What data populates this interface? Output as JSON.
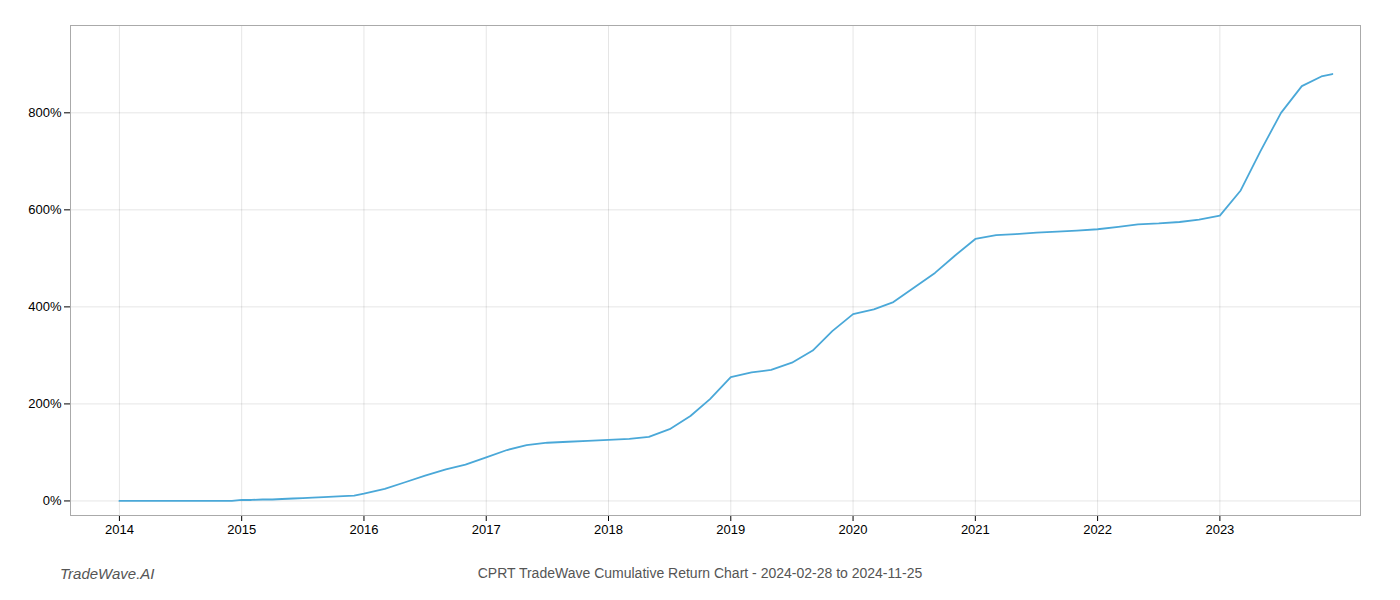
{
  "chart_data": {
    "type": "line",
    "title": "CPRT TradeWave Cumulative Return Chart - 2024-02-28 to 2024-11-25",
    "annotations": [
      {
        "text": "TradeWave.AI"
      }
    ],
    "x": [
      2014.0,
      2014.08,
      2014.17,
      2014.25,
      2014.33,
      2014.42,
      2014.5,
      2014.58,
      2014.67,
      2014.75,
      2014.83,
      2014.92,
      2015.0,
      2015.08,
      2015.17,
      2015.25,
      2015.33,
      2015.42,
      2015.5,
      2015.58,
      2015.67,
      2015.75,
      2015.83,
      2015.92,
      2016.0,
      2016.17,
      2016.33,
      2016.5,
      2016.67,
      2016.83,
      2017.0,
      2017.17,
      2017.33,
      2017.5,
      2017.67,
      2017.83,
      2018.0,
      2018.17,
      2018.33,
      2018.5,
      2018.67,
      2018.83,
      2019.0,
      2019.17,
      2019.33,
      2019.5,
      2019.67,
      2019.83,
      2020.0,
      2020.17,
      2020.33,
      2020.5,
      2020.67,
      2020.83,
      2021.0,
      2021.17,
      2021.33,
      2021.5,
      2021.67,
      2021.83,
      2022.0,
      2022.17,
      2022.33,
      2022.5,
      2022.67,
      2022.83,
      2023.0,
      2023.17,
      2023.33,
      2023.5,
      2023.67,
      2023.83,
      2023.92
    ],
    "values": [
      0,
      0,
      0,
      0,
      0,
      0,
      0,
      0,
      0,
      0,
      0,
      0,
      2,
      2,
      3,
      3,
      4,
      5,
      6,
      7,
      8,
      9,
      10,
      11,
      15,
      25,
      38,
      52,
      65,
      75,
      90,
      105,
      115,
      120,
      122,
      124,
      126,
      128,
      132,
      148,
      175,
      210,
      255,
      265,
      270,
      285,
      310,
      350,
      385,
      395,
      410,
      440,
      470,
      505,
      540,
      548,
      550,
      553,
      555,
      557,
      560,
      565,
      570,
      572,
      575,
      580,
      588,
      640,
      720,
      800,
      855,
      875,
      880
    ],
    "color": "#4aa8d8",
    "xlim": [
      2013.6,
      2024.15
    ],
    "ylim": [
      -30,
      980
    ],
    "xticks": [
      2014,
      2015,
      2016,
      2017,
      2018,
      2019,
      2020,
      2021,
      2022,
      2023
    ],
    "yticks": [
      {
        "value": 0,
        "label": "0%"
      },
      {
        "value": 200,
        "label": "200%"
      },
      {
        "value": 400,
        "label": "400%"
      },
      {
        "value": 600,
        "label": "600%"
      },
      {
        "value": 800,
        "label": "800%"
      }
    ],
    "grid": true
  }
}
